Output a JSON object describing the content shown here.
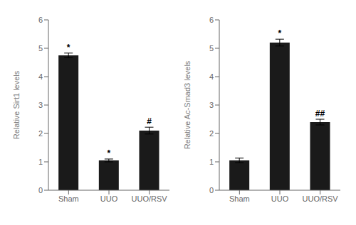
{
  "chart_data": [
    {
      "type": "bar",
      "categories": [
        "Sham",
        "UUO",
        "UUO/RSV"
      ],
      "values": [
        4.75,
        1.05,
        2.1
      ],
      "errors": [
        0.08,
        0.05,
        0.12
      ],
      "color": "#1a1a1a",
      "y_label": "Relative Sirt1 levels",
      "ylim": [
        0,
        6
      ],
      "yticks": [
        0,
        1,
        2,
        3,
        4,
        5,
        6
      ],
      "grid": false,
      "annotations": [
        {
          "category": "Sham",
          "text": "*"
        },
        {
          "category": "UUO",
          "text": "*"
        },
        {
          "category": "UUO/RSV",
          "text": "#"
        }
      ]
    },
    {
      "type": "bar",
      "categories": [
        "Sham",
        "UUO",
        "UUO/RSV"
      ],
      "values": [
        1.05,
        5.2,
        2.4
      ],
      "errors": [
        0.08,
        0.12,
        0.1
      ],
      "color": "#1a1a1a",
      "y_label": "Relative Ac-Smad3 levels",
      "ylim": [
        0,
        6
      ],
      "yticks": [
        0,
        1,
        2,
        3,
        4,
        5,
        6
      ],
      "grid": false,
      "annotations": [
        {
          "category": "UUO",
          "text": "*"
        },
        {
          "category": "UUO/RSV",
          "text": "##"
        }
      ]
    }
  ]
}
